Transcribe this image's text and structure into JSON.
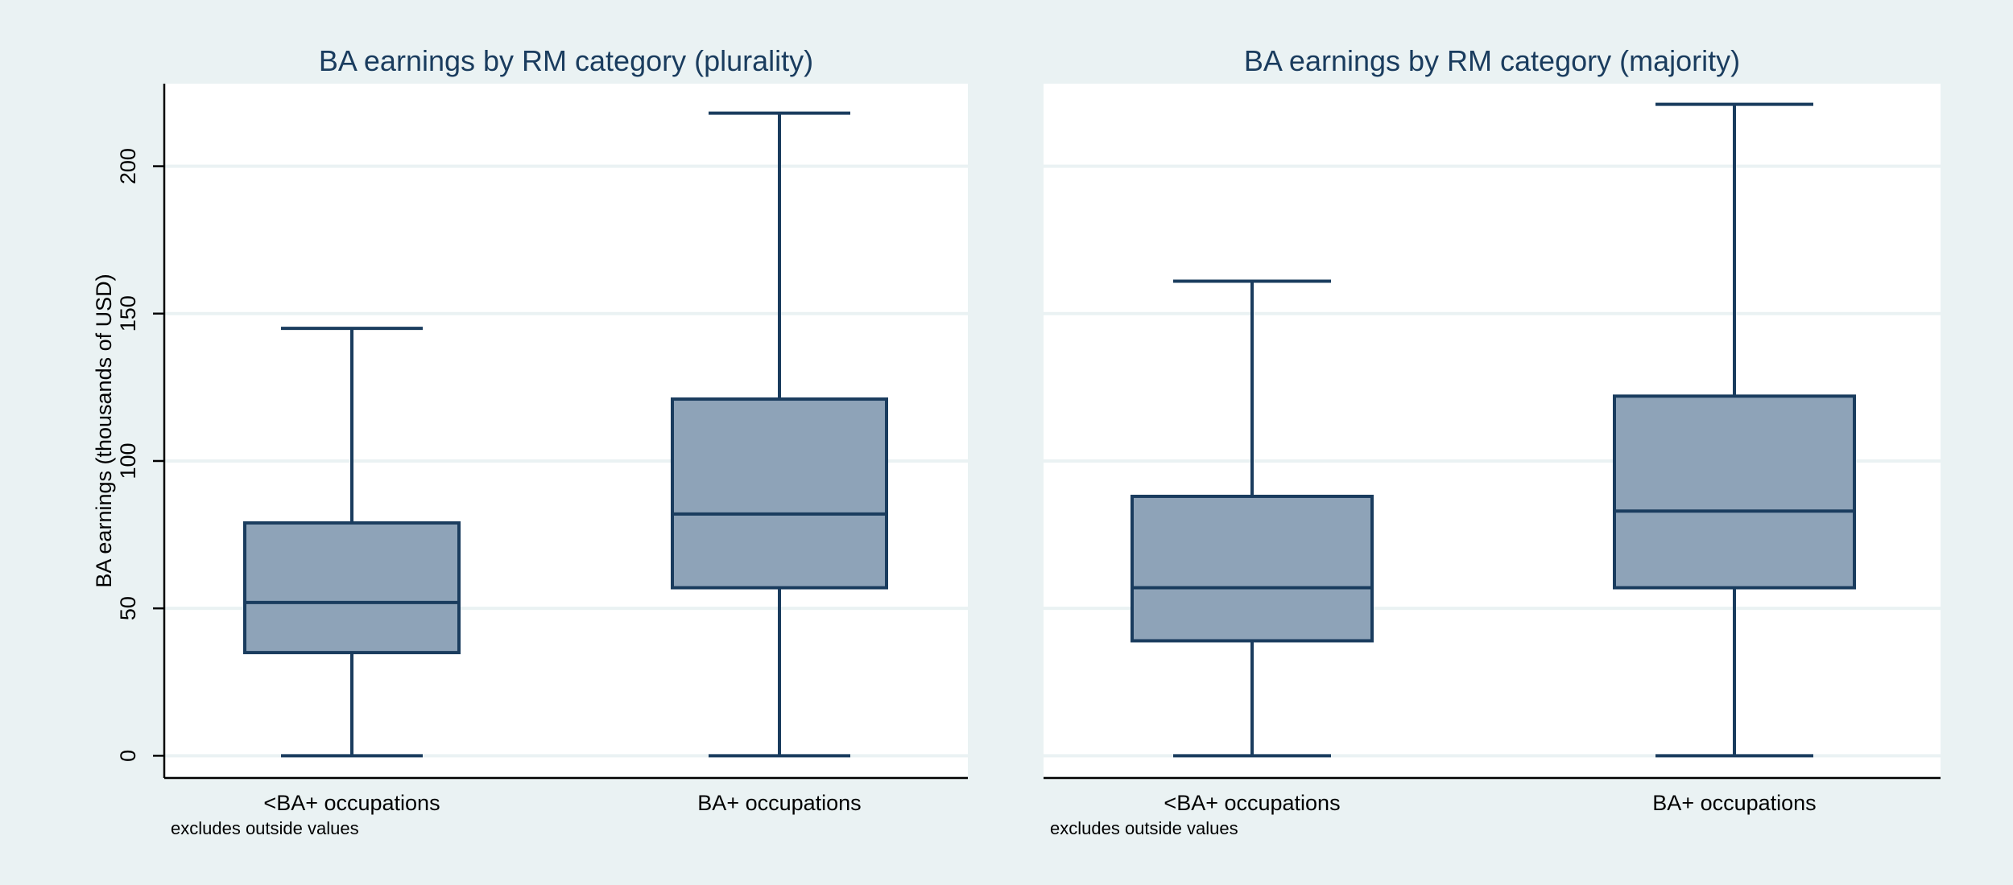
{
  "chart_data": [
    {
      "type": "box",
      "title": "BA earnings by RM category (plurality)",
      "ylabel": "BA earnings (thousands of USD)",
      "ylim": [
        -7,
        228
      ],
      "yticks": [
        0,
        50,
        100,
        150,
        200
      ],
      "categories": [
        "<BA+ occupations",
        "BA+ occupations"
      ],
      "boxes": [
        {
          "min": 0,
          "q1": 35,
          "median": 52,
          "q3": 79,
          "max": 145
        },
        {
          "min": 0,
          "q1": 57,
          "median": 82,
          "q3": 121,
          "max": 218
        }
      ],
      "note": "excludes outside values",
      "grid": true
    },
    {
      "type": "box",
      "title": "BA earnings by RM category (majority)",
      "ylabel": "",
      "ylim": [
        -7,
        228
      ],
      "yticks": [
        0,
        50,
        100,
        150,
        200
      ],
      "categories": [
        "<BA+ occupations",
        "BA+ occupations"
      ],
      "boxes": [
        {
          "min": 0,
          "q1": 39,
          "median": 57,
          "q3": 88,
          "max": 161
        },
        {
          "min": 0,
          "q1": 57,
          "median": 83,
          "q3": 122,
          "max": 221
        }
      ],
      "note": "excludes outside values",
      "grid": true
    }
  ],
  "colors": {
    "background": "#eaf2f3",
    "plot_area": "#ffffff",
    "box_fill": "#8ea3b8",
    "box_stroke": "#1a3c5e",
    "title": "#1a3c5e"
  }
}
